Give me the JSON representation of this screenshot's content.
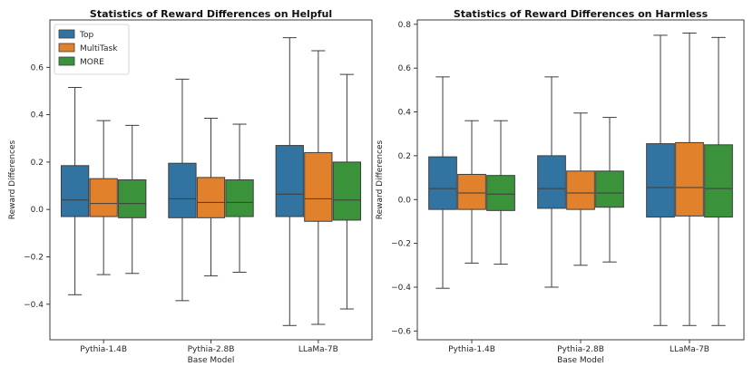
{
  "chart_data": [
    {
      "type": "boxplot",
      "title": "Statistics of Reward Differences on Helpful",
      "xlabel": "Base Model",
      "ylabel": "Reward Differences",
      "categories": [
        "Pythia-1.4B",
        "Pythia-2.8B",
        "LLaMa-7B"
      ],
      "ylim": [
        -0.55,
        0.8
      ],
      "yticks": [
        -0.4,
        -0.2,
        0.0,
        0.2,
        0.4,
        0.6
      ],
      "ytick_labels": [
        "−0.4",
        "−0.2",
        "0.0",
        "0.2",
        "0.4",
        "0.6"
      ],
      "legend": {
        "position": "top-left"
      },
      "series": [
        {
          "name": "Top",
          "color": "#3274a1",
          "boxes": [
            {
              "whislo": -0.36,
              "q1": -0.03,
              "med": 0.04,
              "q3": 0.185,
              "whishi": 0.515
            },
            {
              "whislo": -0.385,
              "q1": -0.035,
              "med": 0.045,
              "q3": 0.195,
              "whishi": 0.55
            },
            {
              "whislo": -0.49,
              "q1": -0.03,
              "med": 0.065,
              "q3": 0.27,
              "whishi": 0.725
            }
          ]
        },
        {
          "name": "MultiTask",
          "color": "#e1812c",
          "boxes": [
            {
              "whislo": -0.275,
              "q1": -0.03,
              "med": 0.025,
              "q3": 0.13,
              "whishi": 0.375
            },
            {
              "whislo": -0.28,
              "q1": -0.035,
              "med": 0.03,
              "q3": 0.135,
              "whishi": 0.385
            },
            {
              "whislo": -0.485,
              "q1": -0.05,
              "med": 0.045,
              "q3": 0.24,
              "whishi": 0.67
            }
          ]
        },
        {
          "name": "MORE",
          "color": "#3a923a",
          "boxes": [
            {
              "whislo": -0.27,
              "q1": -0.035,
              "med": 0.025,
              "q3": 0.125,
              "whishi": 0.355
            },
            {
              "whislo": -0.265,
              "q1": -0.03,
              "med": 0.03,
              "q3": 0.125,
              "whishi": 0.36
            },
            {
              "whislo": -0.42,
              "q1": -0.045,
              "med": 0.04,
              "q3": 0.2,
              "whishi": 0.57
            }
          ]
        }
      ]
    },
    {
      "type": "boxplot",
      "title": "Statistics of Reward Differences on Harmless",
      "xlabel": "Base Model",
      "ylabel": "Reward Differences",
      "categories": [
        "Pythia-1.4B",
        "Pythia-2.8B",
        "LLaMa-7B"
      ],
      "ylim": [
        -0.64,
        0.82
      ],
      "yticks": [
        -0.6,
        -0.4,
        -0.2,
        0.0,
        0.2,
        0.4,
        0.6,
        0.8
      ],
      "ytick_labels": [
        "−0.6",
        "−0.4",
        "−0.2",
        "0.0",
        "0.2",
        "0.4",
        "0.6",
        "0.8"
      ],
      "legend": null,
      "series": [
        {
          "name": "Top",
          "color": "#3274a1",
          "boxes": [
            {
              "whislo": -0.405,
              "q1": -0.045,
              "med": 0.05,
              "q3": 0.195,
              "whishi": 0.56
            },
            {
              "whislo": -0.4,
              "q1": -0.04,
              "med": 0.05,
              "q3": 0.2,
              "whishi": 0.56
            },
            {
              "whislo": -0.575,
              "q1": -0.08,
              "med": 0.055,
              "q3": 0.255,
              "whishi": 0.75
            }
          ]
        },
        {
          "name": "MultiTask",
          "color": "#e1812c",
          "boxes": [
            {
              "whislo": -0.29,
              "q1": -0.045,
              "med": 0.03,
              "q3": 0.115,
              "whishi": 0.36
            },
            {
              "whislo": -0.3,
              "q1": -0.045,
              "med": 0.03,
              "q3": 0.13,
              "whishi": 0.395
            },
            {
              "whislo": -0.575,
              "q1": -0.075,
              "med": 0.055,
              "q3": 0.26,
              "whishi": 0.76
            }
          ]
        },
        {
          "name": "MORE",
          "color": "#3a923a",
          "boxes": [
            {
              "whislo": -0.295,
              "q1": -0.05,
              "med": 0.025,
              "q3": 0.11,
              "whishi": 0.36
            },
            {
              "whislo": -0.285,
              "q1": -0.035,
              "med": 0.03,
              "q3": 0.13,
              "whishi": 0.375
            },
            {
              "whislo": -0.575,
              "q1": -0.08,
              "med": 0.05,
              "q3": 0.25,
              "whishi": 0.74
            }
          ]
        }
      ]
    }
  ]
}
